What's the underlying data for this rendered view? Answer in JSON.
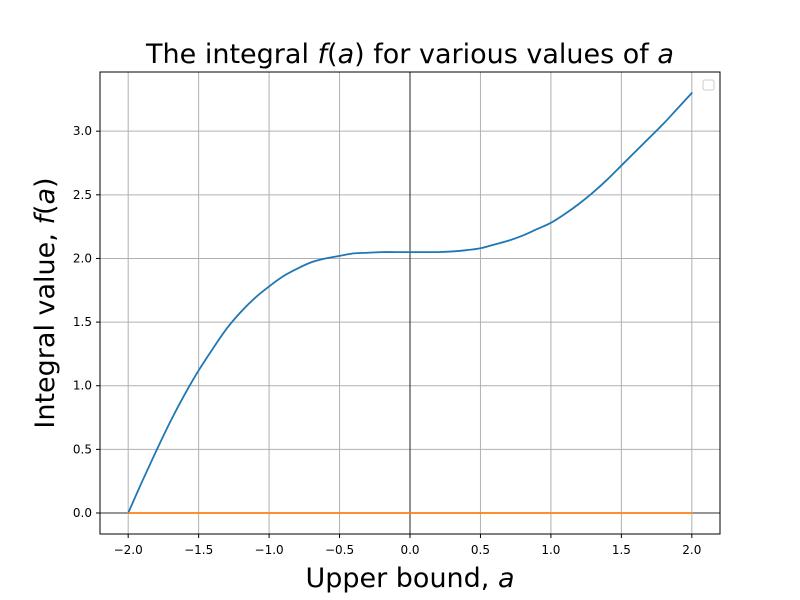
{
  "chart_data": {
    "type": "line",
    "title": {
      "prefix": "The integral ",
      "func": "f",
      "open": "(",
      "arg": "a",
      "close": ")",
      "middle": " for various values of ",
      "tail": "a"
    },
    "xlabel": {
      "text": "Upper bound, ",
      "var": "a"
    },
    "ylabel": {
      "text": "Integral value, ",
      "func": "f",
      "open": "(",
      "arg": "a",
      "close": ")"
    },
    "xlim": [
      -2.2,
      2.2
    ],
    "ylim": [
      -0.165,
      3.465
    ],
    "xticks": [
      {
        "value": -2.0,
        "label": "−2.0"
      },
      {
        "value": -1.5,
        "label": "−1.5"
      },
      {
        "value": -1.0,
        "label": "−1.0"
      },
      {
        "value": -0.5,
        "label": "−0.5"
      },
      {
        "value": 0.0,
        "label": "0.0"
      },
      {
        "value": 0.5,
        "label": "0.5"
      },
      {
        "value": 1.0,
        "label": "1.0"
      },
      {
        "value": 1.5,
        "label": "1.5"
      },
      {
        "value": 2.0,
        "label": "2.0"
      }
    ],
    "yticks": [
      {
        "value": 0.0,
        "label": "0.0"
      },
      {
        "value": 0.5,
        "label": "0.5"
      },
      {
        "value": 1.0,
        "label": "1.0"
      },
      {
        "value": 1.5,
        "label": "1.5"
      },
      {
        "value": 2.0,
        "label": "2.0"
      },
      {
        "value": 2.5,
        "label": "2.5"
      },
      {
        "value": 3.0,
        "label": "3.0"
      }
    ],
    "grid": true,
    "legend": {
      "placement": "top-right",
      "entries": []
    },
    "reference_lines": {
      "vertical_x": 0.0,
      "horizontal_y": 0.0,
      "color": "#000000"
    },
    "series": [
      {
        "color": "#1f77b4",
        "x": [
          -2.0,
          -1.9,
          -1.8,
          -1.7,
          -1.6,
          -1.5,
          -1.4,
          -1.3,
          -1.2,
          -1.1,
          -1.0,
          -0.9,
          -0.8,
          -0.7,
          -0.6,
          -0.5,
          -0.4,
          -0.3,
          -0.2,
          -0.1,
          0.0,
          0.1,
          0.2,
          0.3,
          0.4,
          0.5,
          0.6,
          0.7,
          0.8,
          0.9,
          1.0,
          1.1,
          1.2,
          1.3,
          1.4,
          1.5,
          1.6,
          1.7,
          1.8,
          1.9,
          2.0
        ],
        "y": [
          0.0,
          0.25,
          0.49,
          0.72,
          0.93,
          1.12,
          1.29,
          1.45,
          1.58,
          1.69,
          1.78,
          1.86,
          1.92,
          1.97,
          2.0,
          2.02,
          2.04,
          2.045,
          2.05,
          2.05,
          2.05,
          2.05,
          2.05,
          2.055,
          2.065,
          2.08,
          2.11,
          2.14,
          2.18,
          2.23,
          2.28,
          2.35,
          2.43,
          2.52,
          2.62,
          2.73,
          2.84,
          2.95,
          3.06,
          3.18,
          3.3
        ]
      },
      {
        "color": "#ff7f0e",
        "x": [
          -2.0,
          2.0
        ],
        "y": [
          0.0,
          0.0
        ]
      }
    ]
  }
}
